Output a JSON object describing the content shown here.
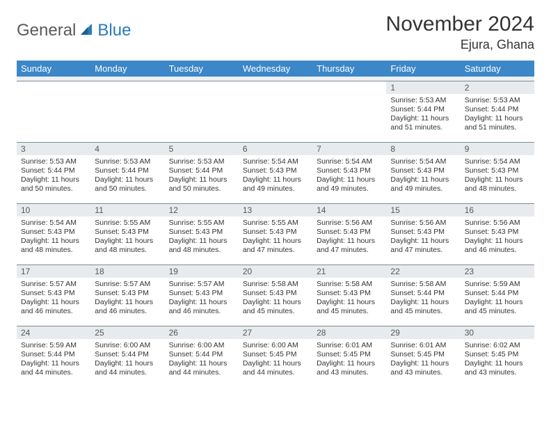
{
  "brand": {
    "part1": "General",
    "part2": "Blue"
  },
  "colors": {
    "header_bg": "#3b87c8",
    "header_text": "#ffffff",
    "daynum_bg": "#e8ebed",
    "rule": "#7d8a94",
    "brand_gray": "#5a5a5a",
    "brand_blue": "#2a7ab8"
  },
  "title": "November 2024",
  "location": "Ejura, Ghana",
  "weekdays": [
    "Sunday",
    "Monday",
    "Tuesday",
    "Wednesday",
    "Thursday",
    "Friday",
    "Saturday"
  ],
  "weeks": [
    [
      {
        "n": "",
        "sr": "",
        "ss": "",
        "dl": ""
      },
      {
        "n": "",
        "sr": "",
        "ss": "",
        "dl": ""
      },
      {
        "n": "",
        "sr": "",
        "ss": "",
        "dl": ""
      },
      {
        "n": "",
        "sr": "",
        "ss": "",
        "dl": ""
      },
      {
        "n": "",
        "sr": "",
        "ss": "",
        "dl": ""
      },
      {
        "n": "1",
        "sr": "Sunrise: 5:53 AM",
        "ss": "Sunset: 5:44 PM",
        "dl": "Daylight: 11 hours and 51 minutes."
      },
      {
        "n": "2",
        "sr": "Sunrise: 5:53 AM",
        "ss": "Sunset: 5:44 PM",
        "dl": "Daylight: 11 hours and 51 minutes."
      }
    ],
    [
      {
        "n": "3",
        "sr": "Sunrise: 5:53 AM",
        "ss": "Sunset: 5:44 PM",
        "dl": "Daylight: 11 hours and 50 minutes."
      },
      {
        "n": "4",
        "sr": "Sunrise: 5:53 AM",
        "ss": "Sunset: 5:44 PM",
        "dl": "Daylight: 11 hours and 50 minutes."
      },
      {
        "n": "5",
        "sr": "Sunrise: 5:53 AM",
        "ss": "Sunset: 5:44 PM",
        "dl": "Daylight: 11 hours and 50 minutes."
      },
      {
        "n": "6",
        "sr": "Sunrise: 5:54 AM",
        "ss": "Sunset: 5:43 PM",
        "dl": "Daylight: 11 hours and 49 minutes."
      },
      {
        "n": "7",
        "sr": "Sunrise: 5:54 AM",
        "ss": "Sunset: 5:43 PM",
        "dl": "Daylight: 11 hours and 49 minutes."
      },
      {
        "n": "8",
        "sr": "Sunrise: 5:54 AM",
        "ss": "Sunset: 5:43 PM",
        "dl": "Daylight: 11 hours and 49 minutes."
      },
      {
        "n": "9",
        "sr": "Sunrise: 5:54 AM",
        "ss": "Sunset: 5:43 PM",
        "dl": "Daylight: 11 hours and 48 minutes."
      }
    ],
    [
      {
        "n": "10",
        "sr": "Sunrise: 5:54 AM",
        "ss": "Sunset: 5:43 PM",
        "dl": "Daylight: 11 hours and 48 minutes."
      },
      {
        "n": "11",
        "sr": "Sunrise: 5:55 AM",
        "ss": "Sunset: 5:43 PM",
        "dl": "Daylight: 11 hours and 48 minutes."
      },
      {
        "n": "12",
        "sr": "Sunrise: 5:55 AM",
        "ss": "Sunset: 5:43 PM",
        "dl": "Daylight: 11 hours and 48 minutes."
      },
      {
        "n": "13",
        "sr": "Sunrise: 5:55 AM",
        "ss": "Sunset: 5:43 PM",
        "dl": "Daylight: 11 hours and 47 minutes."
      },
      {
        "n": "14",
        "sr": "Sunrise: 5:56 AM",
        "ss": "Sunset: 5:43 PM",
        "dl": "Daylight: 11 hours and 47 minutes."
      },
      {
        "n": "15",
        "sr": "Sunrise: 5:56 AM",
        "ss": "Sunset: 5:43 PM",
        "dl": "Daylight: 11 hours and 47 minutes."
      },
      {
        "n": "16",
        "sr": "Sunrise: 5:56 AM",
        "ss": "Sunset: 5:43 PM",
        "dl": "Daylight: 11 hours and 46 minutes."
      }
    ],
    [
      {
        "n": "17",
        "sr": "Sunrise: 5:57 AM",
        "ss": "Sunset: 5:43 PM",
        "dl": "Daylight: 11 hours and 46 minutes."
      },
      {
        "n": "18",
        "sr": "Sunrise: 5:57 AM",
        "ss": "Sunset: 5:43 PM",
        "dl": "Daylight: 11 hours and 46 minutes."
      },
      {
        "n": "19",
        "sr": "Sunrise: 5:57 AM",
        "ss": "Sunset: 5:43 PM",
        "dl": "Daylight: 11 hours and 46 minutes."
      },
      {
        "n": "20",
        "sr": "Sunrise: 5:58 AM",
        "ss": "Sunset: 5:43 PM",
        "dl": "Daylight: 11 hours and 45 minutes."
      },
      {
        "n": "21",
        "sr": "Sunrise: 5:58 AM",
        "ss": "Sunset: 5:43 PM",
        "dl": "Daylight: 11 hours and 45 minutes."
      },
      {
        "n": "22",
        "sr": "Sunrise: 5:58 AM",
        "ss": "Sunset: 5:44 PM",
        "dl": "Daylight: 11 hours and 45 minutes."
      },
      {
        "n": "23",
        "sr": "Sunrise: 5:59 AM",
        "ss": "Sunset: 5:44 PM",
        "dl": "Daylight: 11 hours and 45 minutes."
      }
    ],
    [
      {
        "n": "24",
        "sr": "Sunrise: 5:59 AM",
        "ss": "Sunset: 5:44 PM",
        "dl": "Daylight: 11 hours and 44 minutes."
      },
      {
        "n": "25",
        "sr": "Sunrise: 6:00 AM",
        "ss": "Sunset: 5:44 PM",
        "dl": "Daylight: 11 hours and 44 minutes."
      },
      {
        "n": "26",
        "sr": "Sunrise: 6:00 AM",
        "ss": "Sunset: 5:44 PM",
        "dl": "Daylight: 11 hours and 44 minutes."
      },
      {
        "n": "27",
        "sr": "Sunrise: 6:00 AM",
        "ss": "Sunset: 5:45 PM",
        "dl": "Daylight: 11 hours and 44 minutes."
      },
      {
        "n": "28",
        "sr": "Sunrise: 6:01 AM",
        "ss": "Sunset: 5:45 PM",
        "dl": "Daylight: 11 hours and 43 minutes."
      },
      {
        "n": "29",
        "sr": "Sunrise: 6:01 AM",
        "ss": "Sunset: 5:45 PM",
        "dl": "Daylight: 11 hours and 43 minutes."
      },
      {
        "n": "30",
        "sr": "Sunrise: 6:02 AM",
        "ss": "Sunset: 5:45 PM",
        "dl": "Daylight: 11 hours and 43 minutes."
      }
    ]
  ]
}
